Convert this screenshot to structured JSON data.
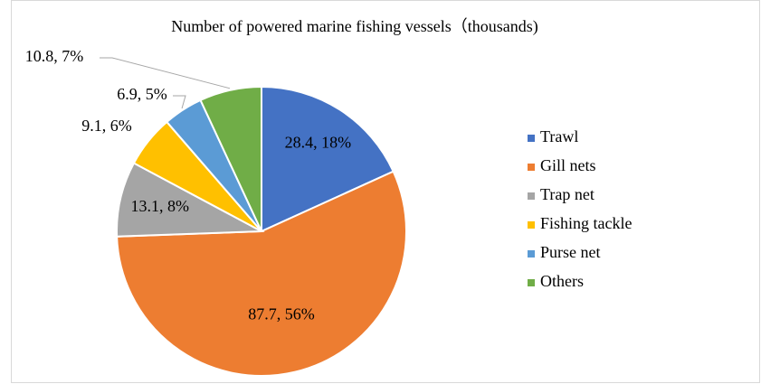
{
  "chart_data": {
    "type": "pie",
    "title": "Number of powered marine fishing vessels（thousands)",
    "categories": [
      "Trawl",
      "Gill nets",
      "Trap net",
      "Fishing tackle",
      "Purse net",
      "Others"
    ],
    "values": [
      28.4,
      87.7,
      13.1,
      9.1,
      6.9,
      10.8
    ],
    "value_labels": [
      "28.4, 18%",
      "87.7, 56%",
      "13.1, 8%",
      "9.1, 6%",
      "6.9, 5%",
      "10.8, 7%"
    ],
    "colors": [
      "#4472c4",
      "#ed7d31",
      "#a5a5a5",
      "#ffc000",
      "#5b9bd5",
      "#70ad47"
    ],
    "legend": "right"
  }
}
